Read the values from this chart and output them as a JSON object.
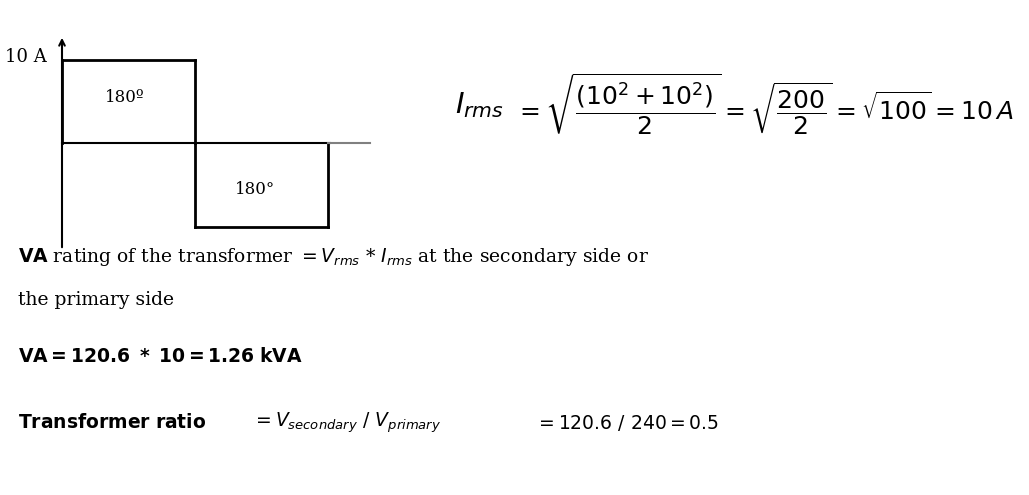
{
  "bg_color": "#ffffff",
  "text_color": "#000000",
  "fig_width": 10.29,
  "fig_height": 4.95,
  "waveform_label": "10 A",
  "angle_label_top": "180º",
  "angle_label_bot": "180°"
}
